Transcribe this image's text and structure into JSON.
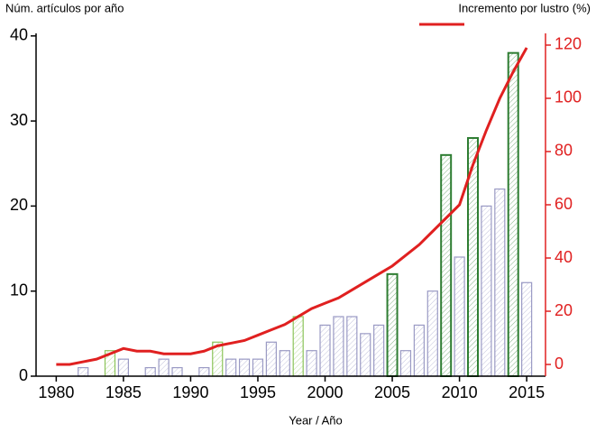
{
  "chart_data": {
    "type": "bar",
    "x_label": "Year / Año",
    "x": [
      1980,
      1981,
      1982,
      1983,
      1984,
      1985,
      1986,
      1987,
      1988,
      1989,
      1990,
      1991,
      1992,
      1993,
      1994,
      1995,
      1996,
      1997,
      1998,
      1999,
      2000,
      2001,
      2002,
      2003,
      2004,
      2005,
      2006,
      2007,
      2008,
      2009,
      2010,
      2011,
      2012,
      2013,
      2014,
      2015
    ],
    "series": [
      {
        "name": "Núm. artículos por año",
        "type": "bar",
        "axis": "y",
        "values": [
          0,
          0,
          1,
          0,
          3,
          2,
          0,
          1,
          2,
          1,
          0,
          1,
          4,
          2,
          2,
          2,
          4,
          3,
          7,
          3,
          6,
          7,
          7,
          5,
          6,
          12,
          3,
          6,
          10,
          26,
          14,
          28,
          20,
          22,
          38,
          11
        ],
        "colors": [
          "#9a9ac4",
          "#9a9ac4",
          "#9a9ac4",
          "#9a9ac4",
          "#8cc45a",
          "#9a9ac4",
          "#9a9ac4",
          "#9a9ac4",
          "#9a9ac4",
          "#9a9ac4",
          "#9a9ac4",
          "#9a9ac4",
          "#8cc45a",
          "#9a9ac4",
          "#9a9ac4",
          "#9a9ac4",
          "#9a9ac4",
          "#9a9ac4",
          "#8cc45a",
          "#9a9ac4",
          "#9a9ac4",
          "#9a9ac4",
          "#9a9ac4",
          "#9a9ac4",
          "#9a9ac4",
          "#2e7d32",
          "#9a9ac4",
          "#9a9ac4",
          "#9a9ac4",
          "#2e7d32",
          "#9a9ac4",
          "#2e7d32",
          "#9a9ac4",
          "#9a9ac4",
          "#2e7d32",
          "#9a9ac4"
        ]
      },
      {
        "name": "Incremento por lustro (%)",
        "type": "line",
        "axis": "y2",
        "color": "#e02020",
        "values": [
          0,
          0,
          1,
          2,
          4,
          6,
          5,
          5,
          4,
          4,
          4,
          5,
          7,
          8,
          9,
          11,
          13,
          15,
          18,
          21,
          23,
          25,
          28,
          31,
          34,
          37,
          41,
          45,
          50,
          55,
          60,
          75,
          88,
          100,
          110,
          119
        ]
      }
    ],
    "xlim": [
      1978.5,
      2016.4
    ],
    "xticks": [
      1980,
      1985,
      1990,
      1995,
      2000,
      2005,
      2010,
      2015
    ],
    "ylim": [
      0,
      40.3
    ],
    "yticks": [
      0,
      10,
      20,
      30,
      40
    ],
    "y2lim": [
      -4.4,
      124.4
    ],
    "y2ticks": [
      0,
      20,
      40,
      60,
      80,
      100,
      120
    ],
    "y2_color": "#e02020"
  }
}
